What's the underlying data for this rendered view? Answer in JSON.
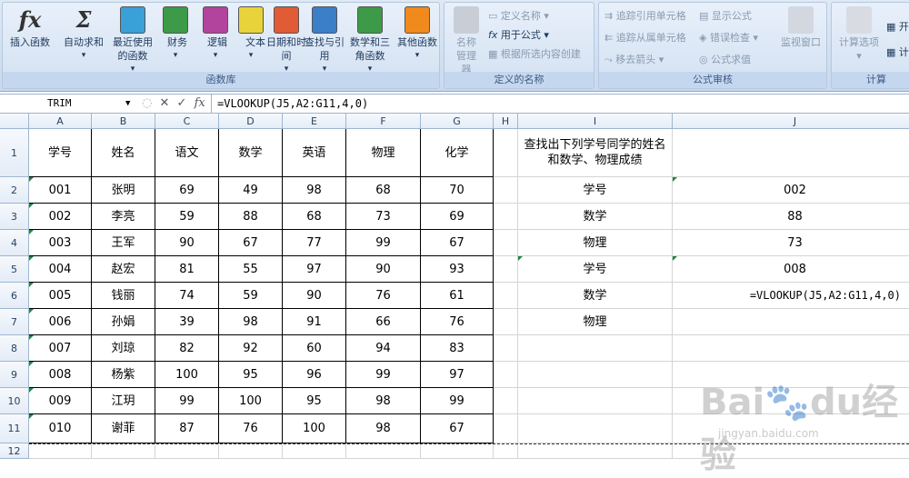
{
  "ribbon": {
    "groups": [
      {
        "label": "函数库",
        "buttons": [
          {
            "label": "插入函数",
            "icon": "fx-icon",
            "color": "#333"
          },
          {
            "label": "自动求和",
            "icon": "sigma-icon",
            "color": "#333"
          },
          {
            "label": "最近使用的函数",
            "icon": "star-book-icon",
            "color": "#3aa0d8"
          },
          {
            "label": "财务",
            "icon": "finance-book-icon",
            "color": "#3c9a48"
          },
          {
            "label": "逻辑",
            "icon": "logic-book-icon",
            "color": "#b3449d"
          },
          {
            "label": "文本",
            "icon": "text-book-icon",
            "color": "#e8d43a"
          },
          {
            "label": "日期和时间",
            "icon": "date-book-icon",
            "color": "#e05b36"
          },
          {
            "label": "查找与引用",
            "icon": "lookup-book-icon",
            "color": "#3a7fc8"
          },
          {
            "label": "数学和三角函数",
            "icon": "math-book-icon",
            "color": "#3c9a48"
          },
          {
            "label": "其他函数",
            "icon": "more-books-icon",
            "color": "#f08a1c"
          }
        ]
      },
      {
        "label": "定义的名称",
        "name_manager": "名称管理器",
        "define_name": "定义名称",
        "use_in_formula": "用于公式",
        "create_from_selection": "根据所选内容创建"
      },
      {
        "label": "公式审核",
        "trace_precedents": "追踪引用单元格",
        "trace_dependents": "追踪从属单元格",
        "remove_arrows": "移去箭头",
        "show_formulas": "显示公式",
        "error_checking": "错误检查",
        "evaluate_formula": "公式求值",
        "watch_window": "监视窗口"
      },
      {
        "label": "计算",
        "calc_options": "计算选项",
        "calc_now": "开",
        "calc_sheet": "计"
      }
    ]
  },
  "formula_bar": {
    "name_box": "TRIM",
    "formula": "=VLOOKUP(J5,A2:G11,4,0)"
  },
  "columns": [
    "A",
    "B",
    "C",
    "D",
    "E",
    "F",
    "G",
    "H",
    "I",
    "J"
  ],
  "rows": [
    "1",
    "2",
    "3",
    "4",
    "5",
    "6",
    "7",
    "8",
    "9",
    "10",
    "11",
    "12"
  ],
  "table": {
    "headers": [
      "学号",
      "姓名",
      "语文",
      "数学",
      "英语",
      "物理",
      "化学"
    ],
    "rows": [
      [
        "001",
        "张明",
        "69",
        "49",
        "98",
        "68",
        "70"
      ],
      [
        "002",
        "李亮",
        "59",
        "88",
        "68",
        "73",
        "69"
      ],
      [
        "003",
        "王军",
        "90",
        "67",
        "77",
        "99",
        "67"
      ],
      [
        "004",
        "赵宏",
        "81",
        "55",
        "97",
        "90",
        "93"
      ],
      [
        "005",
        "钱丽",
        "74",
        "59",
        "90",
        "76",
        "61"
      ],
      [
        "006",
        "孙娟",
        "39",
        "98",
        "91",
        "66",
        "76"
      ],
      [
        "007",
        "刘琼",
        "82",
        "92",
        "60",
        "94",
        "83"
      ],
      [
        "008",
        "杨紫",
        "100",
        "95",
        "96",
        "99",
        "97"
      ],
      [
        "009",
        "江玥",
        "99",
        "100",
        "95",
        "98",
        "99"
      ],
      [
        "010",
        "谢菲",
        "87",
        "76",
        "100",
        "98",
        "67"
      ]
    ]
  },
  "lookup": {
    "title": "查找出下列学号同学的姓名和数学、物理成绩",
    "labels": [
      "学号",
      "数学",
      "物理",
      "学号",
      "数学",
      "物理"
    ],
    "values": [
      "002",
      "88",
      "73",
      "008",
      "=VLOOKUP(J5,A2:G11,4,0)",
      ""
    ]
  },
  "watermark": {
    "text": "Baidu经验",
    "url": "jingyan.baidu.com"
  }
}
